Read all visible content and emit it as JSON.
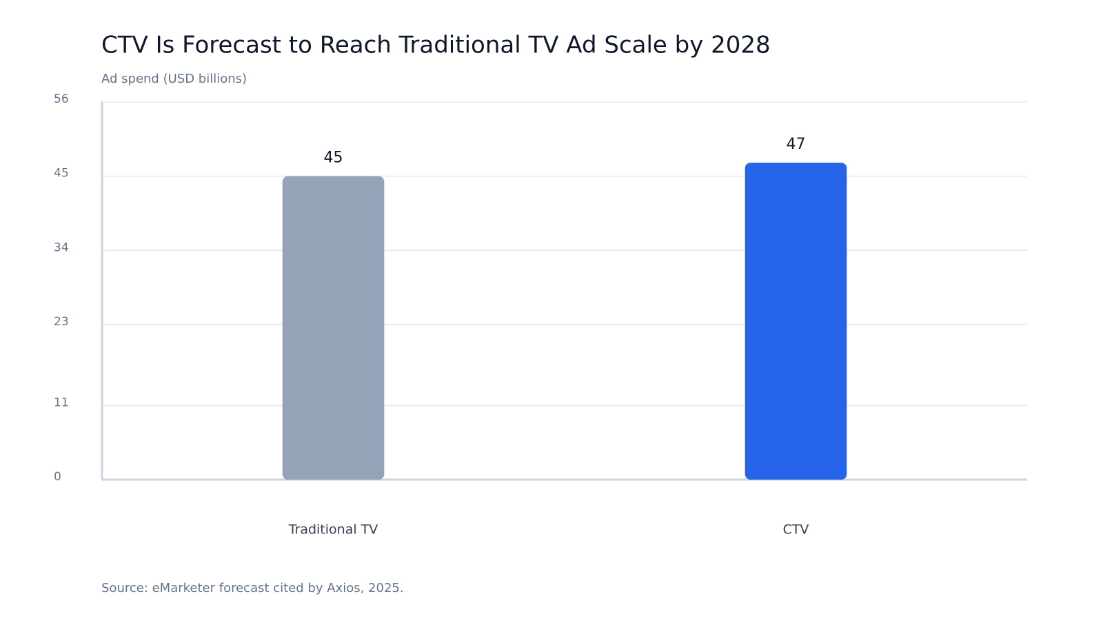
{
  "chart_data": {
    "type": "bar",
    "title": "CTV Is Forecast to Reach Traditional TV Ad Scale by 2028",
    "ylabel": "Ad spend (USD billions)",
    "source": "Source: eMarketer forecast cited by Axios, 2025.",
    "categories": [
      "Traditional TV",
      "CTV"
    ],
    "values": [
      45,
      47
    ],
    "colors": [
      "#94a3b8",
      "#2563eb"
    ],
    "ylim": [
      0,
      56
    ],
    "yticks": [
      0,
      11,
      23,
      34,
      45,
      56
    ],
    "grid": true
  }
}
